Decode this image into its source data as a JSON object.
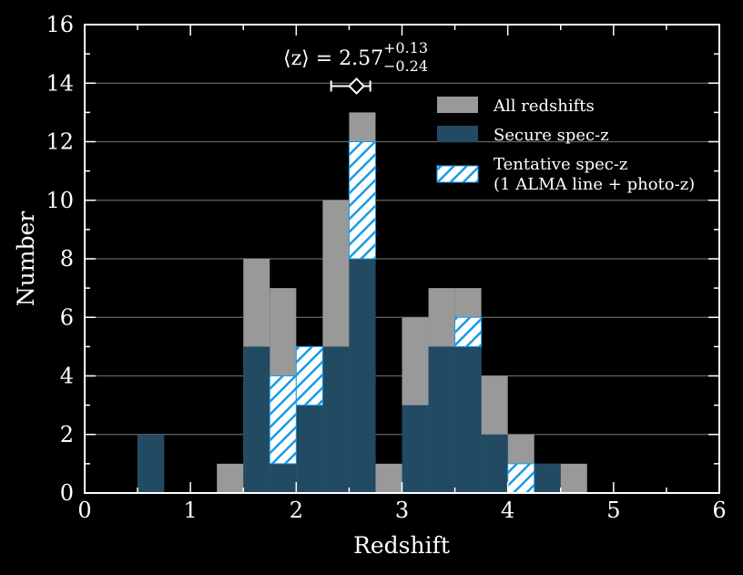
{
  "chart_data": {
    "type": "bar",
    "histogram": true,
    "bin_width": 0.25,
    "bin_starts": [
      0.5,
      1.25,
      1.5,
      1.75,
      2.0,
      2.25,
      2.5,
      2.75,
      3.0,
      3.25,
      3.5,
      3.75,
      4.0,
      4.25,
      4.5
    ],
    "series": [
      {
        "name": "All redshifts",
        "color": "#999999",
        "values": [
          2,
          1,
          8,
          7,
          5,
          10,
          13,
          1,
          6,
          7,
          7,
          4,
          2,
          1,
          1
        ]
      },
      {
        "name": "Secure spec-z",
        "color": "#234a63",
        "values": [
          2,
          0,
          5,
          1,
          3,
          5,
          8,
          0,
          3,
          5,
          5,
          2,
          0,
          1,
          0
        ]
      },
      {
        "name": "Tentative spec-z\n(1 ALMA line + photo-z)",
        "color": "#1a9ae6",
        "pattern": "hatched",
        "values": [
          0,
          0,
          0,
          3,
          2,
          0,
          4,
          0,
          0,
          0,
          1,
          0,
          1,
          0,
          0
        ]
      }
    ],
    "xlabel": "Redshift",
    "ylabel": "Number",
    "xlim": [
      0,
      6
    ],
    "ylim": [
      0,
      16
    ],
    "xticks": [
      "0",
      "1",
      "2",
      "3",
      "4",
      "5",
      "6"
    ],
    "yticks": [
      "0",
      "2",
      "4",
      "6",
      "8",
      "10",
      "12",
      "14",
      "16"
    ],
    "grid": "horizontal",
    "legend_position": "top-right",
    "annotation": {
      "prefix": "⟨z⟩ = 2.57",
      "sup": "+0.13",
      "sub": "−0.24",
      "z_median": 2.57,
      "err_plus": 0.13,
      "err_minus": 0.24,
      "y": 13.9
    },
    "legend_labels": {
      "all": "All redshifts",
      "secure": "Secure spec-z",
      "tentative_line1": "Tentative spec-z",
      "tentative_line2": "(1 ALMA line + photo-z)"
    }
  }
}
